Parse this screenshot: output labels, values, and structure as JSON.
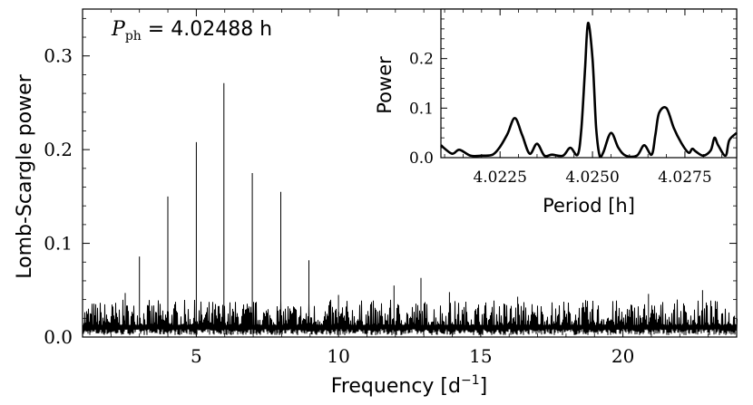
{
  "chart_data": [
    {
      "type": "line",
      "xlabel": "Frequency [d",
      "xlabel_sup": "−1",
      "xlabel_tail": "]",
      "ylabel": "Lomb-Scargle power",
      "xlim": [
        1,
        24
      ],
      "ylim": [
        0,
        0.35
      ],
      "xticks": [
        5,
        10,
        15,
        20
      ],
      "xtick_labels": [
        "5",
        "10",
        "15",
        "20"
      ],
      "yticks": [
        0,
        0.1,
        0.2,
        0.3
      ],
      "ytick_labels": [
        "0.0",
        "0.1",
        "0.2",
        "0.3"
      ],
      "annotation": {
        "symbol": "P",
        "subscript": "ph",
        "text": " = 4.02488 h"
      },
      "noise_floor": 0.013,
      "noise_max": 0.04,
      "peaks": [
        {
          "x": 2.5,
          "y": 0.047
        },
        {
          "x": 3.0,
          "y": 0.086
        },
        {
          "x": 4.0,
          "y": 0.15
        },
        {
          "x": 5.0,
          "y": 0.208
        },
        {
          "x": 5.97,
          "y": 0.271
        },
        {
          "x": 6.97,
          "y": 0.175
        },
        {
          "x": 7.97,
          "y": 0.155
        },
        {
          "x": 8.96,
          "y": 0.082
        },
        {
          "x": 10.0,
          "y": 0.045
        },
        {
          "x": 11.95,
          "y": 0.055
        },
        {
          "x": 12.9,
          "y": 0.063
        },
        {
          "x": 13.9,
          "y": 0.048
        },
        {
          "x": 16.3,
          "y": 0.043
        },
        {
          "x": 20.9,
          "y": 0.046
        },
        {
          "x": 22.8,
          "y": 0.05
        }
      ],
      "grid": false
    },
    {
      "type": "line",
      "xlabel": "Period [h]",
      "ylabel": "Power",
      "xlim": [
        4.0209,
        4.0289
      ],
      "ylim": [
        0,
        0.3
      ],
      "xticks": [
        4.0225,
        4.025,
        4.0275
      ],
      "xtick_labels": [
        "4.0225",
        "4.0250",
        "4.0275"
      ],
      "yticks": [
        0,
        0.1,
        0.2
      ],
      "ytick_labels": [
        "0.0",
        "0.1",
        "0.2"
      ],
      "x": [
        4.0209,
        4.0212,
        4.0214,
        4.0217,
        4.022,
        4.0223,
        4.0225,
        4.0227,
        4.0229,
        4.0231,
        4.0233,
        4.0235,
        4.0237,
        4.0239,
        4.0242,
        4.0244,
        4.0246,
        4.0247,
        4.0248,
        4.02488,
        4.025,
        4.0251,
        4.0252,
        4.0253,
        4.0255,
        4.0257,
        4.0259,
        4.0262,
        4.0264,
        4.0266,
        4.0267,
        4.0268,
        4.027,
        4.0272,
        4.0274,
        4.0276,
        4.0277,
        4.0278,
        4.028,
        4.0282,
        4.0283,
        4.0284,
        4.0286,
        4.0287,
        4.0289
      ],
      "y": [
        0.025,
        0.008,
        0.016,
        0.004,
        0.004,
        0.006,
        0.022,
        0.048,
        0.08,
        0.045,
        0.008,
        0.028,
        0.004,
        0.006,
        0.004,
        0.02,
        0.006,
        0.06,
        0.18,
        0.272,
        0.2,
        0.06,
        0.002,
        0.012,
        0.05,
        0.02,
        0.004,
        0.004,
        0.025,
        0.006,
        0.045,
        0.09,
        0.1,
        0.06,
        0.03,
        0.01,
        0.018,
        0.012,
        0.004,
        0.015,
        0.04,
        0.025,
        0.004,
        0.035,
        0.05
      ],
      "grid": false
    }
  ]
}
